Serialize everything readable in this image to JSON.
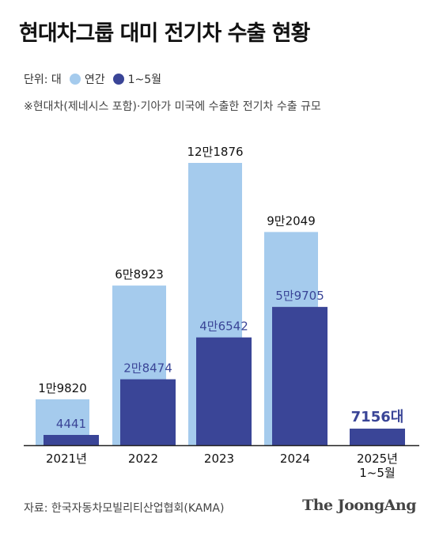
{
  "title": "현대차그룹 대미 전기차 수출 현황",
  "legend": {
    "unit_label": "단위: 대",
    "annual_label": "연간",
    "partial_label": "1~5월"
  },
  "note": "※현대차(제네시스 포함)·기아가 미국에 수출한 전기차 수출 규모",
  "source": "자료: 한국자동차모빌리티산업협회(KAMA)",
  "brand": "The JoongAng",
  "colors": {
    "annual": "#a5cbed",
    "partial": "#3a4597",
    "partial_text": "#3a4597",
    "axis": "#222222"
  },
  "chart_data": {
    "type": "bar",
    "categories": [
      [
        "2021년"
      ],
      [
        "2022"
      ],
      [
        "2023"
      ],
      [
        "2024"
      ],
      [
        "2025년",
        "1~5월"
      ]
    ],
    "series": [
      {
        "name": "연간",
        "values": [
          19820,
          68923,
          121876,
          92049,
          null
        ],
        "labels": [
          "1만9820",
          "6만8923",
          "12만1876",
          "9만2049",
          null
        ]
      },
      {
        "name": "1~5월",
        "values": [
          4441,
          28474,
          46542,
          59705,
          7156
        ],
        "labels": [
          "4441",
          "2만8474",
          "4만6542",
          "5만9705",
          "7156대"
        ]
      }
    ],
    "ylim": [
      0,
      121876
    ],
    "grid": false
  }
}
